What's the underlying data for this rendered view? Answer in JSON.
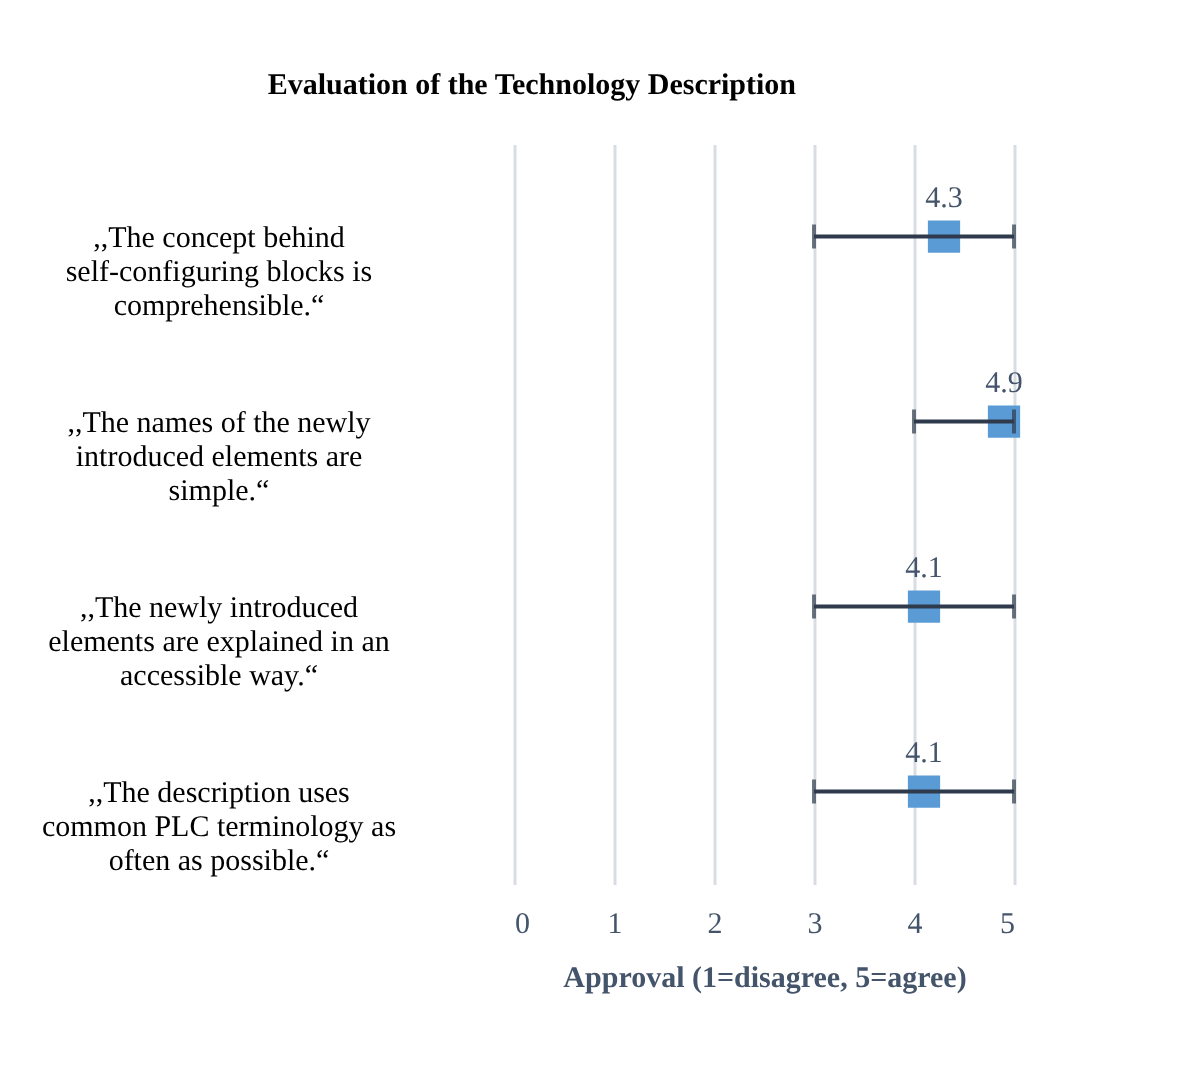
{
  "chart_data": {
    "type": "scatter",
    "title": "Evaluation of the Technology Description",
    "xlabel": "Approval (1=disagree, 5=agree)",
    "orientation": "horizontal",
    "categories": [
      ",,The concept behind self-configuring blocks is comprehensible.“",
      ",,The names of the newly introduced elements are simple.“",
      ",,The newly introduced elements are explained in an accessible way.“",
      ",,The description uses common PLC terminology as often as possible.“"
    ],
    "series": [
      {
        "color": "#5b9bd5",
        "values": [
          4.3,
          4.9,
          4.1,
          4.1
        ],
        "errors": [
          [
            3,
            5
          ],
          [
            4,
            5
          ],
          [
            3,
            5
          ],
          [
            3,
            5
          ]
        ]
      }
    ],
    "xlim": [
      0,
      5
    ],
    "xticks": [
      0,
      1,
      2,
      3,
      4,
      5
    ],
    "grid": "x",
    "marker": "square",
    "data_labels": true
  }
}
